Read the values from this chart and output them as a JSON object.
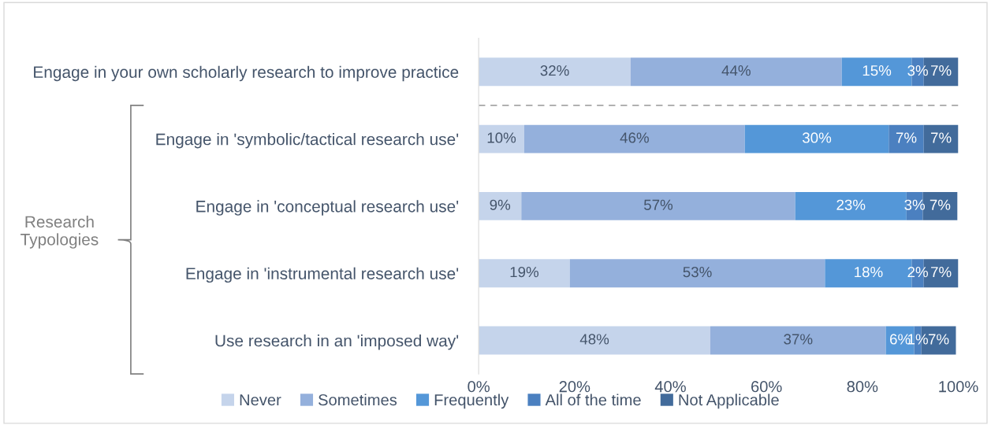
{
  "chart_data": {
    "type": "bar",
    "orientation": "horizontal",
    "stacked": true,
    "categories": [
      "Engage in your own scholarly research to improve practice",
      "Engage in 'symbolic/tactical research use'",
      "Engage in 'conceptual research use'",
      "Engage in 'instrumental research use'",
      "Use research in an 'imposed way'"
    ],
    "series": [
      {
        "name": "Never",
        "color": "#c5d4eb",
        "values": [
          31.7,
          9.5,
          8.9,
          19.0,
          48.3
        ],
        "value_labels": [
          "32%",
          "10%",
          "9%",
          "19%",
          "48%"
        ]
      },
      {
        "name": "Sometimes",
        "color": "#94b0dc",
        "values": [
          44.0,
          46.0,
          57.1,
          53.2,
          36.6
        ],
        "value_labels": [
          "44%",
          "46%",
          "57%",
          "53%",
          "37%"
        ]
      },
      {
        "name": "Frequently",
        "color": "#5497d8",
        "values": [
          14.6,
          30.0,
          23.2,
          18.1,
          5.9
        ],
        "value_labels": [
          "15%",
          "30%",
          "23%",
          "18%",
          "6%"
        ]
      },
      {
        "name": "All of the time",
        "color": "#4b80c0",
        "values": [
          2.5,
          7.3,
          3.4,
          2.5,
          1.5
        ],
        "value_labels": [
          "3%",
          "7%",
          "3%",
          "2%",
          "1%"
        ]
      },
      {
        "name": "Not Applicable",
        "color": "#426b9b",
        "values": [
          7.2,
          7.2,
          7.2,
          7.2,
          7.2
        ],
        "value_labels": [
          "7%",
          "7%",
          "7%",
          "7%",
          "7%"
        ]
      }
    ],
    "xlim": [
      0,
      100
    ],
    "xticks": [
      {
        "value": 0,
        "label": "0%"
      },
      {
        "value": 20,
        "label": "20%"
      },
      {
        "value": 40,
        "label": "40%"
      },
      {
        "value": 60,
        "label": "60%"
      },
      {
        "value": 80,
        "label": "80%"
      },
      {
        "value": 100,
        "label": "100%"
      }
    ],
    "annotations": [
      "Research Typologies"
    ],
    "grid": false,
    "legend": "bottom"
  }
}
